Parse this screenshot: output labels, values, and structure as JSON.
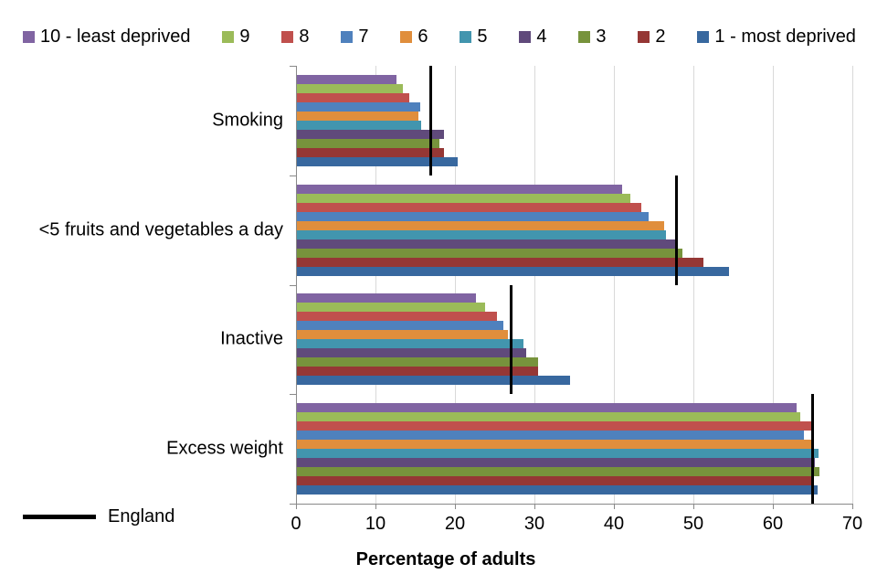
{
  "chart_data": {
    "type": "bar",
    "orientation": "horizontal",
    "title": "",
    "xlabel": "Percentage of adults",
    "xlim": [
      0,
      70
    ],
    "xticks": [
      0,
      10,
      20,
      30,
      40,
      50,
      60,
      70
    ],
    "grid": "vertical, every 10 units, light gray",
    "legend_position": "top",
    "categories": [
      "Smoking",
      "<5 fruits and vegetables a day",
      "Inactive",
      "Excess weight"
    ],
    "series": [
      {
        "name": "10 -  least deprived",
        "color": "#8064A2",
        "values": [
          12.7,
          41.0,
          22.6,
          63.0
        ]
      },
      {
        "name": "9",
        "color": "#9BBB59",
        "values": [
          13.5,
          42.1,
          23.8,
          63.4
        ]
      },
      {
        "name": "8",
        "color": "#C0504D",
        "values": [
          14.3,
          43.4,
          25.3,
          64.8
        ]
      },
      {
        "name": "7",
        "color": "#4F81BD",
        "values": [
          15.6,
          44.4,
          26.1,
          63.9
        ]
      },
      {
        "name": "6",
        "color": "#E08E3C",
        "values": [
          15.4,
          46.3,
          26.7,
          64.8
        ]
      },
      {
        "name": "5",
        "color": "#4295AE",
        "values": [
          15.8,
          46.6,
          28.6,
          65.7
        ]
      },
      {
        "name": "4",
        "color": "#604A7B",
        "values": [
          18.6,
          48.0,
          29.0,
          65.3
        ]
      },
      {
        "name": "3",
        "color": "#77933C",
        "values": [
          18.1,
          48.6,
          30.5,
          65.9
        ]
      },
      {
        "name": "2",
        "color": "#953735",
        "values": [
          18.6,
          51.3,
          30.5,
          65.0
        ]
      },
      {
        "name": "1 - most deprived",
        "color": "#38689F",
        "values": [
          20.4,
          54.5,
          34.5,
          65.6
        ]
      }
    ],
    "england": {
      "label": "England",
      "color": "#000000",
      "values": [
        16.9,
        47.9,
        27.1,
        65.0
      ]
    }
  }
}
